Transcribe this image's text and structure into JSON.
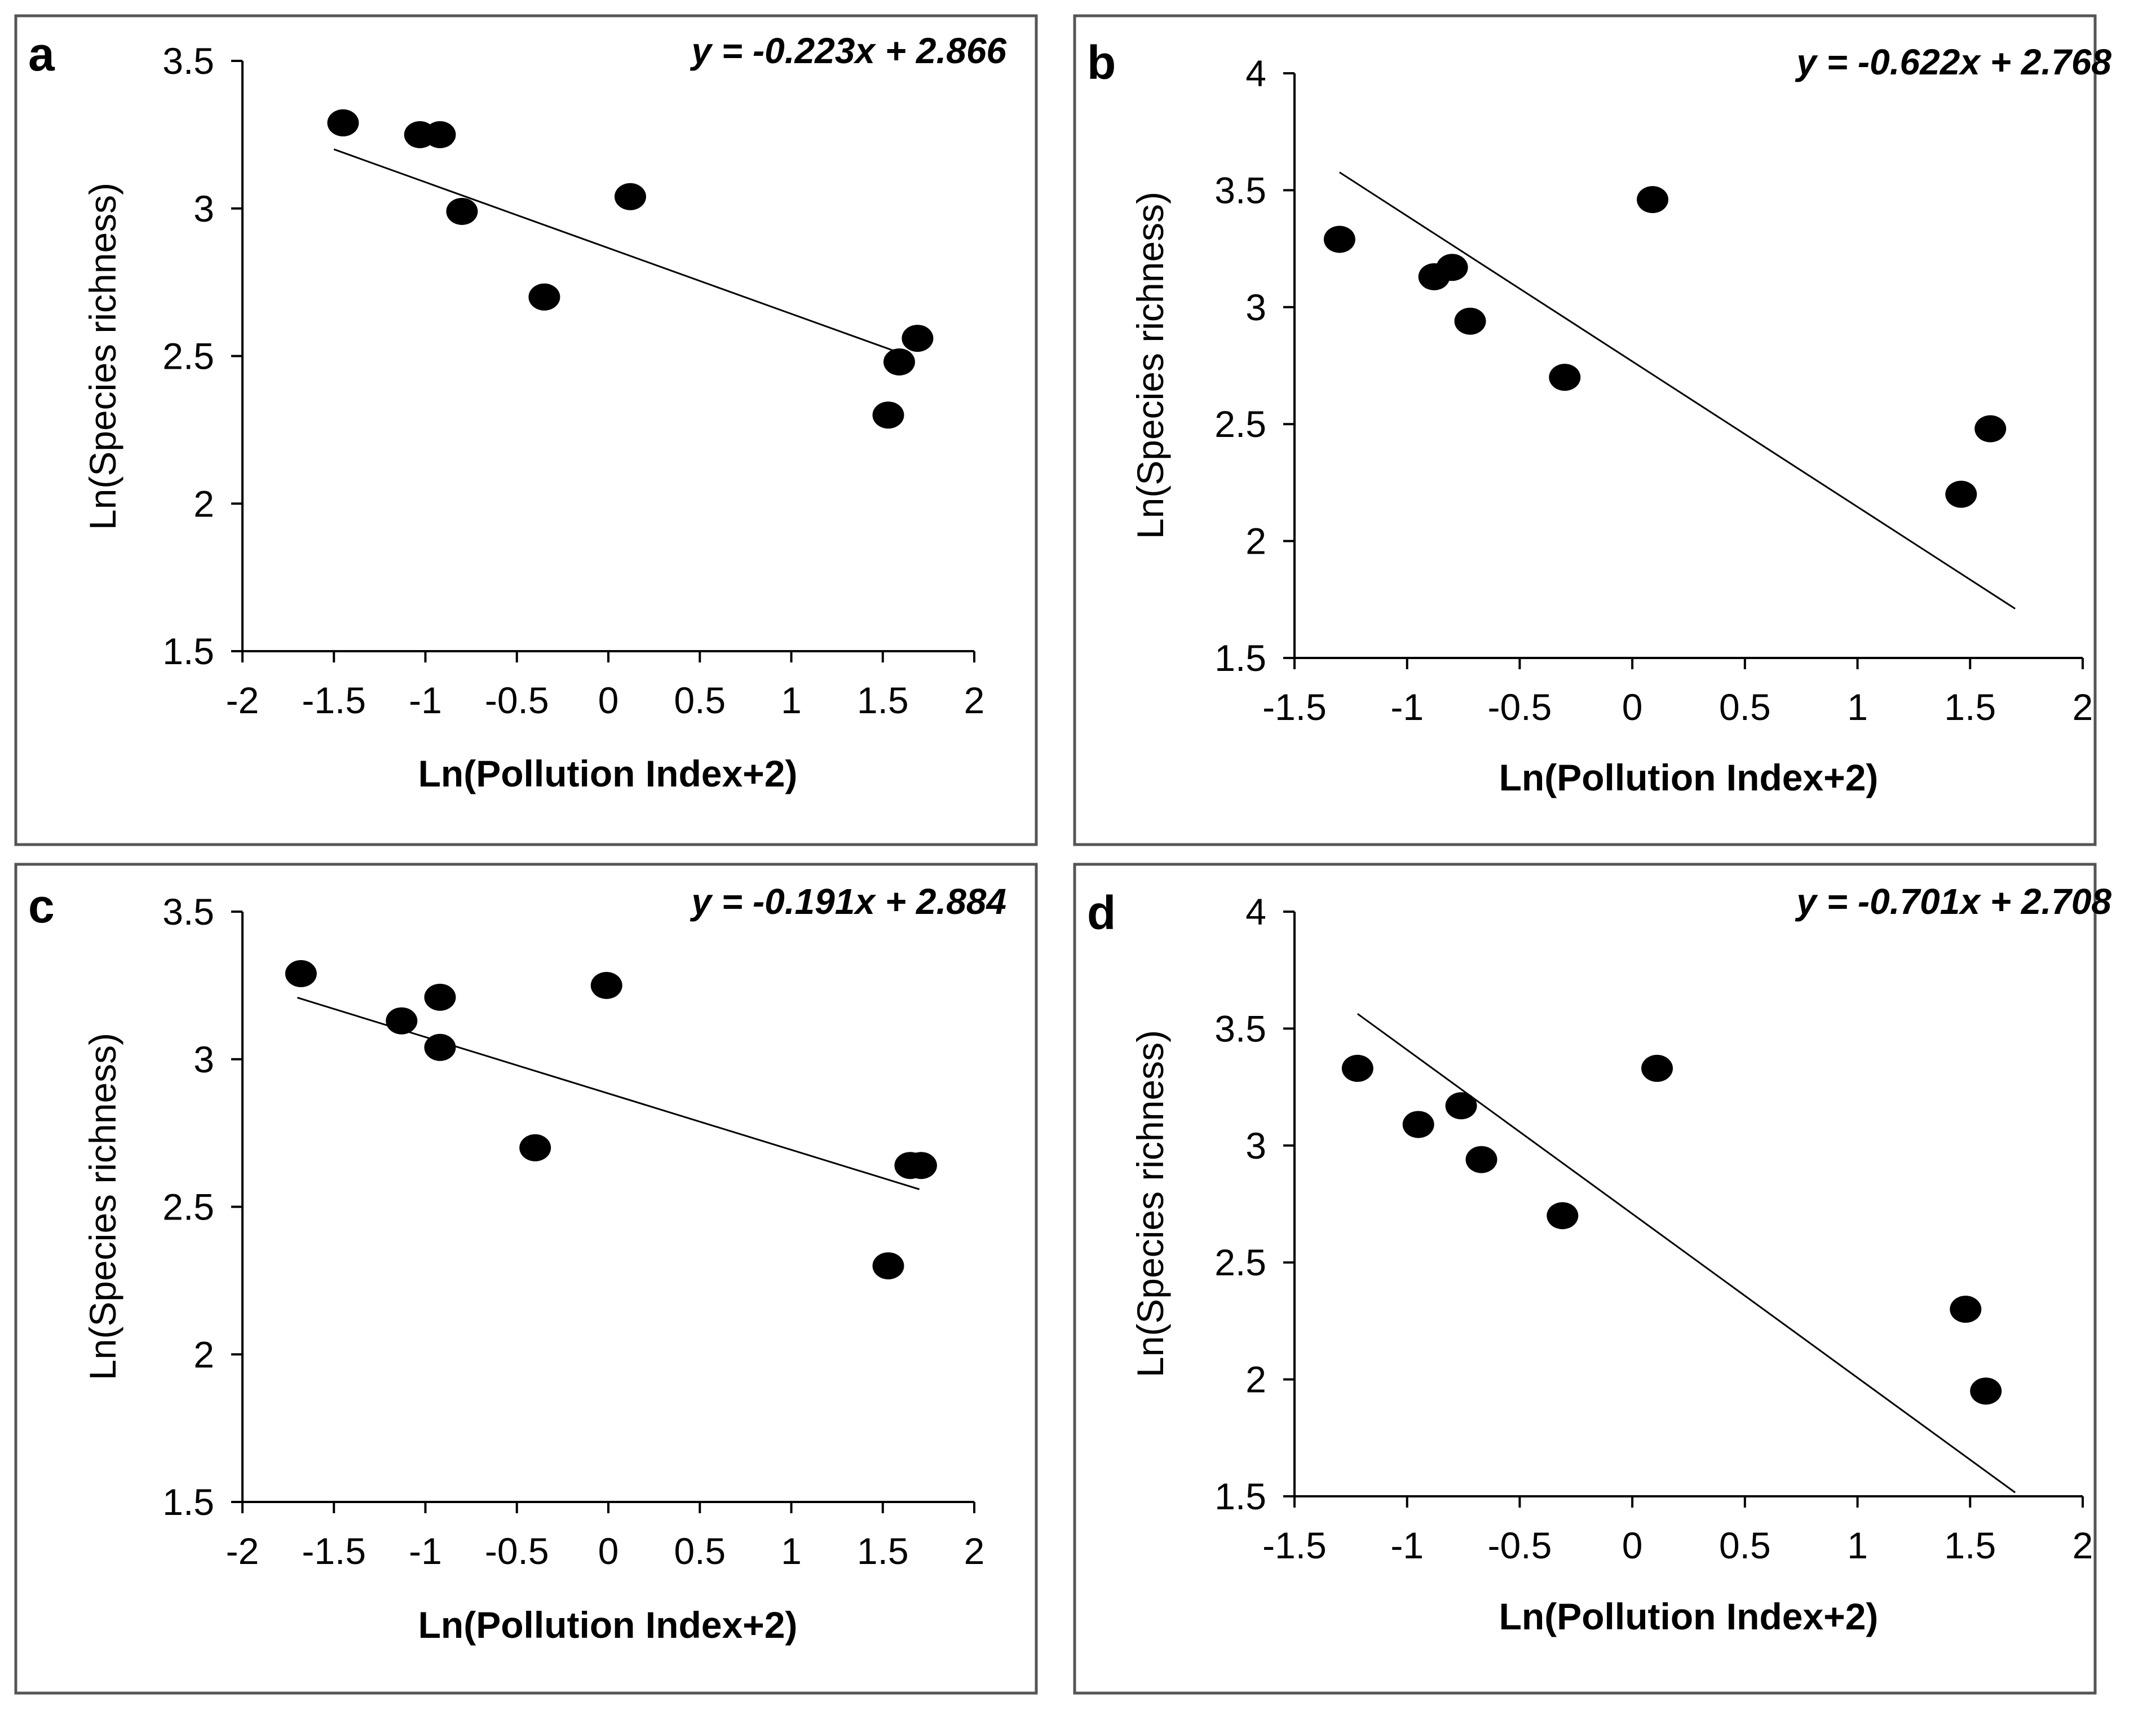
{
  "chart_data": [
    {
      "type": "scatter",
      "panel": "a",
      "equation": "y = -0.223x + 2.866",
      "xlabel": "Ln(Pollution Index+2)",
      "ylabel": "Ln(Species richness)",
      "xlim": [
        -2,
        2
      ],
      "ylim": [
        1.5,
        3.5
      ],
      "xticks": [
        -2,
        -1.5,
        -1,
        -0.5,
        0,
        0.5,
        1,
        1.5,
        2
      ],
      "yticks": [
        1.5,
        2,
        2.5,
        3,
        3.5
      ],
      "xtick_labels": [
        "-2",
        "-1.5",
        "-1",
        "-0.5",
        "0",
        "0.5",
        "1",
        "1.5",
        "2"
      ],
      "ytick_labels": [
        "1.5",
        "2",
        "2.5",
        "3",
        "3.5"
      ],
      "trendline": {
        "slope": -0.223,
        "intercept": 2.866,
        "x_range": [
          -1.5,
          1.6
        ]
      },
      "points": [
        {
          "x": -1.45,
          "y": 3.29
        },
        {
          "x": -1.03,
          "y": 3.25
        },
        {
          "x": -0.92,
          "y": 3.25
        },
        {
          "x": -0.8,
          "y": 2.99
        },
        {
          "x": -0.35,
          "y": 2.7
        },
        {
          "x": 0.12,
          "y": 3.04
        },
        {
          "x": 1.53,
          "y": 2.3
        },
        {
          "x": 1.59,
          "y": 2.48
        },
        {
          "x": 1.69,
          "y": 2.56
        }
      ]
    },
    {
      "type": "scatter",
      "panel": "b",
      "equation": "y = -0.622x + 2.768",
      "xlabel": "Ln(Pollution Index+2)",
      "ylabel": "Ln(Species richness)",
      "xlim": [
        -1.5,
        2
      ],
      "ylim": [
        1.5,
        4
      ],
      "xticks": [
        -1.5,
        -1,
        -0.5,
        0,
        0.5,
        1,
        1.5,
        2
      ],
      "yticks": [
        1.5,
        2,
        2.5,
        3,
        3.5,
        4
      ],
      "xtick_labels": [
        "-1.5",
        "-1",
        "-0.5",
        "0",
        "0.5",
        "1",
        "1.5",
        "2"
      ],
      "ytick_labels": [
        "1.5",
        "2",
        "2.5",
        "3",
        "3.5",
        "4"
      ],
      "trendline": {
        "slope": -0.622,
        "intercept": 2.768,
        "x_range": [
          -1.3,
          1.7
        ]
      },
      "points": [
        {
          "x": -1.3,
          "y": 3.29
        },
        {
          "x": -0.88,
          "y": 3.13
        },
        {
          "x": -0.8,
          "y": 3.17
        },
        {
          "x": -0.72,
          "y": 2.94
        },
        {
          "x": -0.3,
          "y": 2.7
        },
        {
          "x": 0.09,
          "y": 3.46
        },
        {
          "x": 1.46,
          "y": 2.2
        },
        {
          "x": 1.59,
          "y": 2.48
        }
      ]
    },
    {
      "type": "scatter",
      "panel": "c",
      "equation": "y = -0.191x + 2.884",
      "xlabel": "Ln(Pollution Index+2)",
      "ylabel": "Ln(Species richness)",
      "xlim": [
        -2,
        2
      ],
      "ylim": [
        1.5,
        3.5
      ],
      "xticks": [
        -2,
        -1.5,
        -1,
        -0.5,
        0,
        0.5,
        1,
        1.5,
        2
      ],
      "yticks": [
        1.5,
        2,
        2.5,
        3,
        3.5
      ],
      "xtick_labels": [
        "-2",
        "-1.5",
        "-1",
        "-0.5",
        "0",
        "0.5",
        "1",
        "1.5",
        "2"
      ],
      "ytick_labels": [
        "1.5",
        "2",
        "2.5",
        "3",
        "3.5"
      ],
      "trendline": {
        "slope": -0.191,
        "intercept": 2.884,
        "x_range": [
          -1.7,
          1.7
        ]
      },
      "points": [
        {
          "x": -1.68,
          "y": 3.29
        },
        {
          "x": -1.13,
          "y": 3.13
        },
        {
          "x": -0.92,
          "y": 3.21
        },
        {
          "x": -0.92,
          "y": 3.04
        },
        {
          "x": -0.4,
          "y": 2.7
        },
        {
          "x": -0.01,
          "y": 3.25
        },
        {
          "x": 1.53,
          "y": 2.3
        },
        {
          "x": 1.65,
          "y": 2.64
        },
        {
          "x": 1.71,
          "y": 2.64
        }
      ]
    },
    {
      "type": "scatter",
      "panel": "d",
      "equation": "y = -0.701x + 2.708",
      "xlabel": "Ln(Pollution Index+2)",
      "ylabel": "Ln(Species richness)",
      "xlim": [
        -1.5,
        2
      ],
      "ylim": [
        1.5,
        4
      ],
      "xticks": [
        -1.5,
        -1,
        -0.5,
        0,
        0.5,
        1,
        1.5,
        2
      ],
      "yticks": [
        1.5,
        2,
        2.5,
        3,
        3.5,
        4
      ],
      "xtick_labels": [
        "-1.5",
        "-1",
        "-0.5",
        "0",
        "0.5",
        "1",
        "1.5",
        "2"
      ],
      "ytick_labels": [
        "1.5",
        "2",
        "2.5",
        "3",
        "3.5",
        "4"
      ],
      "trendline": {
        "slope": -0.701,
        "intercept": 2.708,
        "x_range": [
          -1.22,
          1.7
        ]
      },
      "points": [
        {
          "x": -1.22,
          "y": 3.33
        },
        {
          "x": -0.95,
          "y": 3.09
        },
        {
          "x": -0.76,
          "y": 3.17
        },
        {
          "x": -0.67,
          "y": 2.94
        },
        {
          "x": -0.31,
          "y": 2.7
        },
        {
          "x": 0.11,
          "y": 3.33
        },
        {
          "x": 1.48,
          "y": 2.3
        },
        {
          "x": 1.57,
          "y": 1.95
        }
      ]
    }
  ]
}
